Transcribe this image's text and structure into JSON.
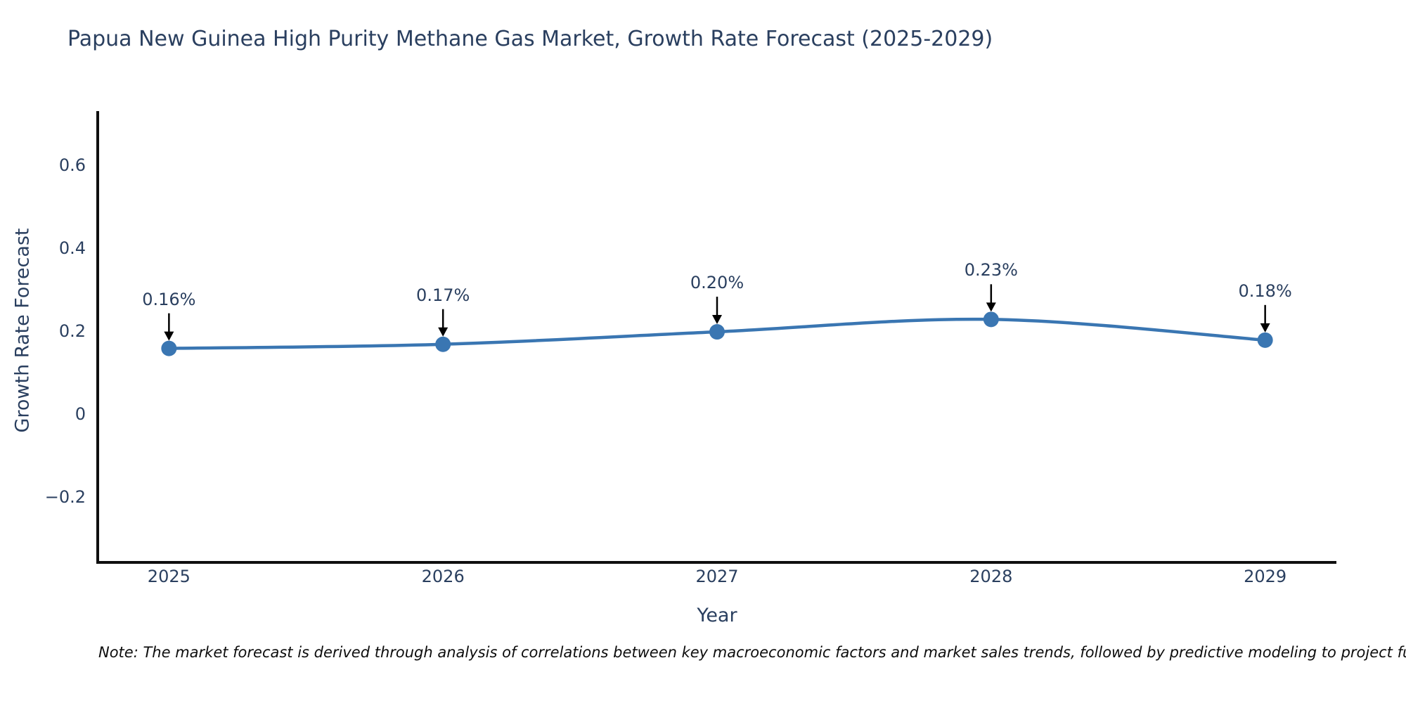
{
  "title": "Papua New Guinea High Purity Methane Gas Market, Growth Rate Forecast (2025-2029)",
  "note": "Note: The market forecast is derived through analysis of correlations between key macroeconomic factors and market sales trends, followed by predictive modeling to project future sa",
  "colors": {
    "series": "#3a76b2",
    "text": "#2a3f5f",
    "axis": "#0f0f0f",
    "arrow": "#000000",
    "background": "#ffffff"
  },
  "chart_data": {
    "type": "line",
    "title": "Papua New Guinea High Purity Methane Gas Market, Growth Rate Forecast (2025-2029)",
    "xlabel": "Year",
    "ylabel": "Growth Rate Forecast",
    "x": [
      2025,
      2026,
      2027,
      2028,
      2029
    ],
    "values": [
      0.16,
      0.17,
      0.2,
      0.23,
      0.18
    ],
    "point_labels": [
      "0.16%",
      "0.17%",
      "0.20%",
      "0.23%",
      "0.18%"
    ],
    "yticks": [
      {
        "v": 0.6,
        "label": "0.6"
      },
      {
        "v": 0.4,
        "label": "0.4"
      },
      {
        "v": 0.2,
        "label": "0.2"
      },
      {
        "v": 0.0,
        "label": "0"
      },
      {
        "v": -0.2,
        "label": "−0.2"
      }
    ],
    "xticks": [
      {
        "v": 2025,
        "label": "2025"
      },
      {
        "v": 2026,
        "label": "2026"
      },
      {
        "v": 2027,
        "label": "2027"
      },
      {
        "v": 2028,
        "label": "2028"
      },
      {
        "v": 2029,
        "label": "2029"
      }
    ],
    "xlim": [
      2024.74,
      2029.26
    ],
    "ylim": [
      -0.356,
      0.729
    ],
    "grid": false,
    "legend": "none",
    "marker": "circle",
    "annotations": "value labels with black down-arrows above each point"
  }
}
